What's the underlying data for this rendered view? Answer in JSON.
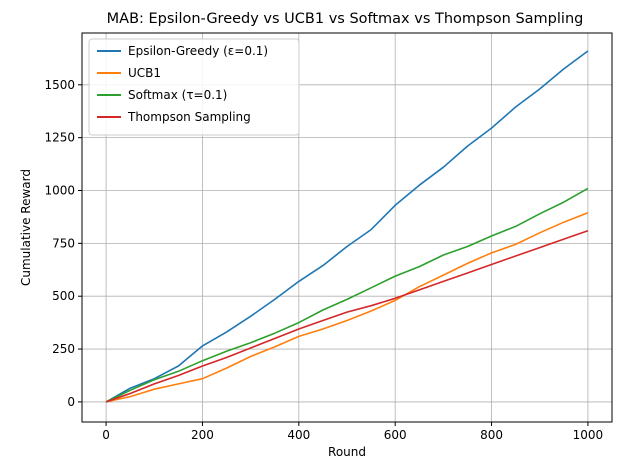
{
  "chart_data": {
    "type": "line",
    "title": "MAB: Epsilon-Greedy vs UCB1 vs Softmax vs Thompson Sampling",
    "xlabel": "Round",
    "ylabel": "Cumulative Reward",
    "xlim": [
      -50,
      1050
    ],
    "ylim": [
      -95,
      1745
    ],
    "xticks": [
      0,
      200,
      400,
      600,
      800,
      1000
    ],
    "yticks": [
      0,
      250,
      500,
      750,
      1000,
      1250,
      1500
    ],
    "grid": true,
    "legend_position": "top-left",
    "series": [
      {
        "name": "Epsilon-Greedy (ε=0.1)",
        "color": "#1f77b4",
        "points": [
          [
            0,
            0
          ],
          [
            50,
            65
          ],
          [
            100,
            110
          ],
          [
            150,
            170
          ],
          [
            200,
            265
          ],
          [
            250,
            330
          ],
          [
            300,
            405
          ],
          [
            350,
            485
          ],
          [
            400,
            570
          ],
          [
            450,
            645
          ],
          [
            500,
            735
          ],
          [
            550,
            815
          ],
          [
            600,
            930
          ],
          [
            650,
            1025
          ],
          [
            700,
            1110
          ],
          [
            750,
            1210
          ],
          [
            800,
            1295
          ],
          [
            850,
            1395
          ],
          [
            900,
            1480
          ],
          [
            950,
            1575
          ],
          [
            1000,
            1660
          ]
        ]
      },
      {
        "name": "UCB1",
        "color": "#ff7f0e",
        "points": [
          [
            0,
            0
          ],
          [
            50,
            25
          ],
          [
            100,
            60
          ],
          [
            150,
            85
          ],
          [
            200,
            110
          ],
          [
            250,
            160
          ],
          [
            300,
            215
          ],
          [
            350,
            260
          ],
          [
            400,
            310
          ],
          [
            450,
            345
          ],
          [
            500,
            385
          ],
          [
            550,
            430
          ],
          [
            600,
            480
          ],
          [
            650,
            545
          ],
          [
            700,
            600
          ],
          [
            750,
            655
          ],
          [
            800,
            705
          ],
          [
            850,
            745
          ],
          [
            900,
            800
          ],
          [
            950,
            850
          ],
          [
            1000,
            895
          ]
        ]
      },
      {
        "name": "Softmax (τ=0.1)",
        "color": "#2ca02c",
        "points": [
          [
            0,
            0
          ],
          [
            50,
            55
          ],
          [
            100,
            105
          ],
          [
            150,
            145
          ],
          [
            200,
            195
          ],
          [
            250,
            240
          ],
          [
            300,
            280
          ],
          [
            350,
            325
          ],
          [
            400,
            375
          ],
          [
            450,
            435
          ],
          [
            500,
            485
          ],
          [
            550,
            540
          ],
          [
            600,
            595
          ],
          [
            650,
            640
          ],
          [
            700,
            695
          ],
          [
            750,
            735
          ],
          [
            800,
            785
          ],
          [
            850,
            830
          ],
          [
            900,
            890
          ],
          [
            950,
            945
          ],
          [
            1000,
            1010
          ]
        ]
      },
      {
        "name": "Thompson Sampling",
        "color": "#d62728",
        "points": [
          [
            0,
            0
          ],
          [
            50,
            40
          ],
          [
            100,
            85
          ],
          [
            150,
            125
          ],
          [
            200,
            170
          ],
          [
            250,
            210
          ],
          [
            300,
            255
          ],
          [
            350,
            300
          ],
          [
            400,
            345
          ],
          [
            450,
            385
          ],
          [
            500,
            425
          ],
          [
            550,
            455
          ],
          [
            600,
            490
          ],
          [
            650,
            530
          ],
          [
            700,
            570
          ],
          [
            750,
            610
          ],
          [
            800,
            650
          ],
          [
            850,
            690
          ],
          [
            900,
            730
          ],
          [
            950,
            770
          ],
          [
            1000,
            810
          ]
        ]
      }
    ]
  }
}
